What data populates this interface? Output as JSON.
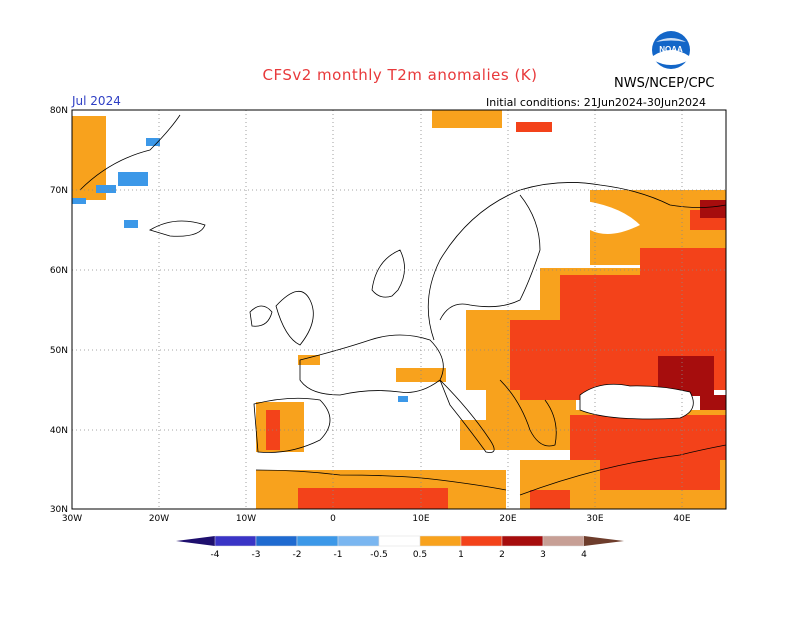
{
  "header": {
    "title": "CFSv2 monthly T2m anomalies (K)",
    "agency": "NWS/NCEP/CPC",
    "month": "Jul 2024",
    "init": "Initial conditions: 21Jun2024-30Jun2024",
    "logo_text": "NOAA"
  },
  "axes": {
    "lat_labels": [
      "80N",
      "70N",
      "60N",
      "50N",
      "40N",
      "30N"
    ],
    "lon_labels": [
      "30W",
      "20W",
      "10W",
      "0",
      "10E",
      "20E",
      "30E",
      "40E"
    ]
  },
  "legend": {
    "labels": [
      "-4",
      "-3",
      "-2",
      "-1",
      "-0.5",
      "0.5",
      "1",
      "2",
      "3",
      "4"
    ],
    "colors": [
      "#1e0f6e",
      "#3a34c6",
      "#1f6ad0",
      "#3c98e8",
      "#7ab6f0",
      "#ffffff",
      "#f8a21d",
      "#f3421a",
      "#a60d0d",
      "#c79f95",
      "#6e3d2c"
    ]
  }
}
